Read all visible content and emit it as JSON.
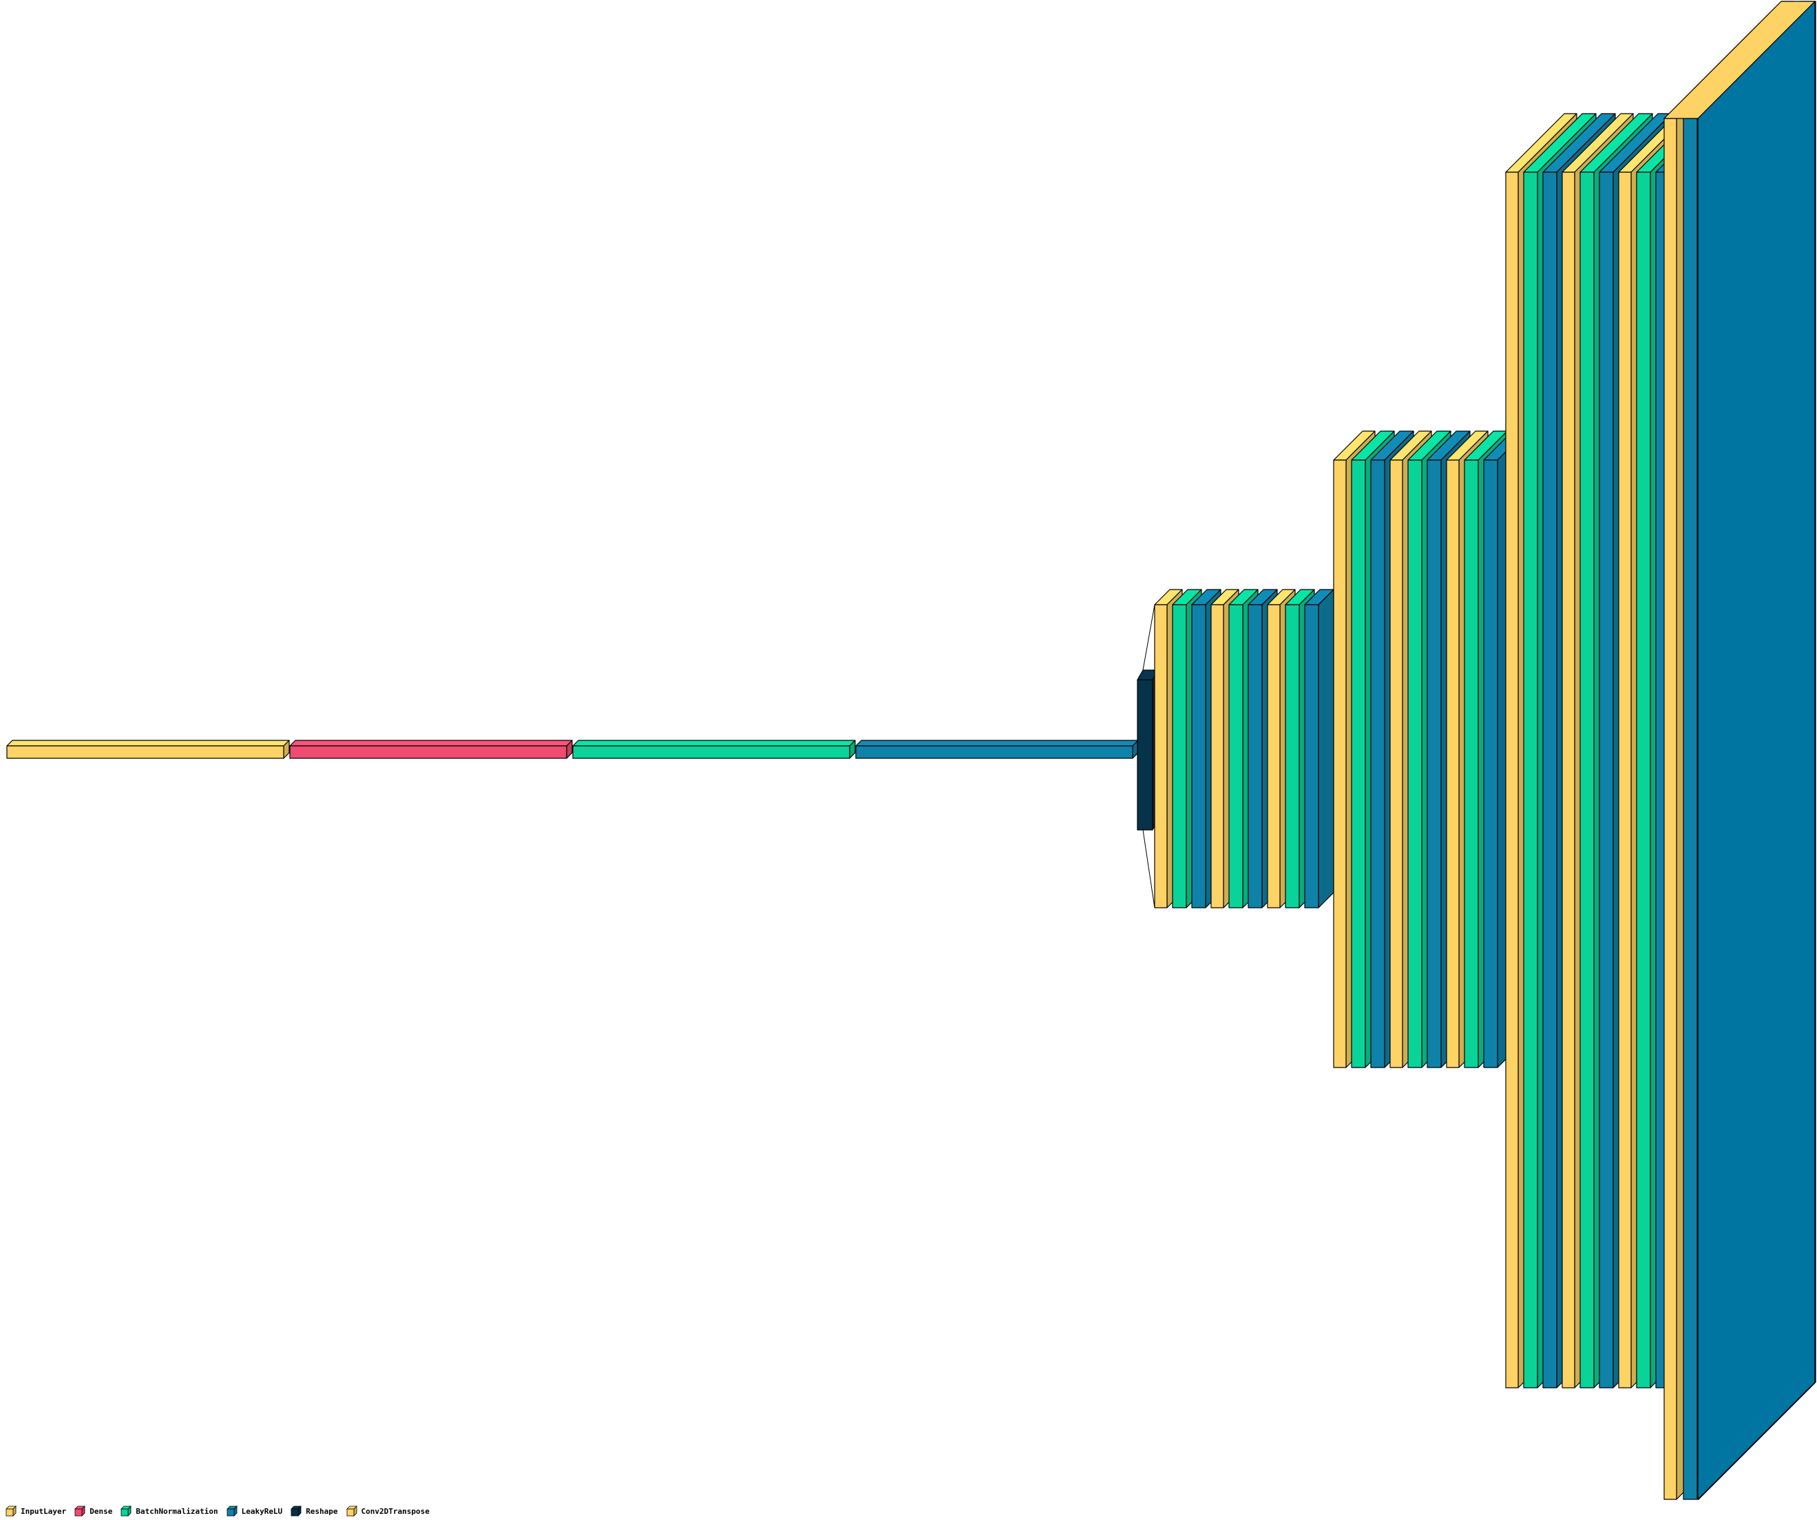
{
  "colors": {
    "InputLayer": "#fdd365",
    "Dense": "#ee4c70",
    "BatchNormalization": "#09d399",
    "LeakyReLU": "#0f82aa",
    "Reshape": "#06324a",
    "Conv2DTranspose": "#fdd365",
    "output": "#0075a2"
  },
  "legend": [
    {
      "label": "InputLayer",
      "key": "InputLayer"
    },
    {
      "label": "Dense",
      "key": "Dense"
    },
    {
      "label": "BatchNormalization",
      "key": "BatchNormalization"
    },
    {
      "label": "LeakyReLU",
      "key": "LeakyReLU"
    },
    {
      "label": "Reshape",
      "key": "Reshape"
    },
    {
      "label": "Conv2DTranspose",
      "key": "Conv2DTranspose"
    }
  ],
  "layers": [
    "InputLayer",
    "Dense",
    "BatchNormalization",
    "LeakyReLU",
    "Reshape",
    "Conv2DTranspose",
    "BatchNormalization",
    "LeakyReLU",
    "Conv2DTranspose",
    "BatchNormalization",
    "LeakyReLU",
    "Conv2DTranspose",
    "BatchNormalization",
    "LeakyReLU",
    "Conv2DTranspose",
    "BatchNormalization",
    "LeakyReLU",
    "Conv2DTranspose",
    "BatchNormalization",
    "LeakyReLU",
    "Conv2DTranspose",
    "BatchNormalization",
    "LeakyReLU",
    "Conv2DTranspose",
    "BatchNormalization",
    "LeakyReLU",
    "Conv2DTranspose",
    "BatchNormalization",
    "LeakyReLU",
    "Conv2DTranspose",
    "BatchNormalization",
    "LeakyReLU",
    "Conv2DTranspose",
    "LeakyReLU"
  ]
}
